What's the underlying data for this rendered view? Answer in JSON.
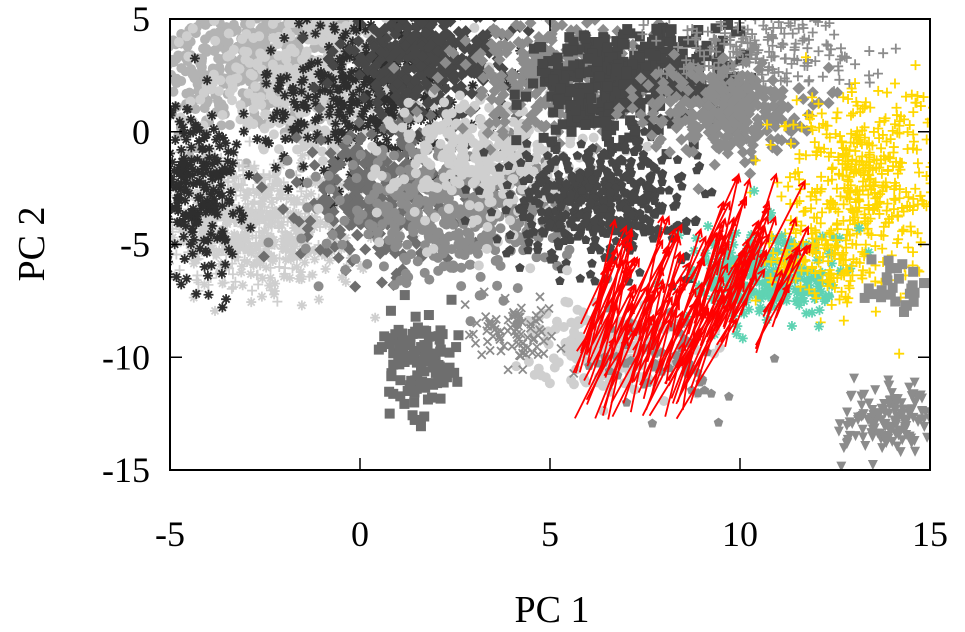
{
  "chart_data": {
    "type": "scatter",
    "xlabel": "PC 1",
    "ylabel": "PC 2",
    "xlim": [
      -5,
      15
    ],
    "ylim": [
      -15,
      5
    ],
    "xticks": [
      -5,
      0,
      5,
      10,
      15
    ],
    "yticks": [
      -15,
      -10,
      -5,
      0,
      5
    ],
    "xtick_labels": [
      "-5",
      "0",
      "5",
      "10",
      "15"
    ],
    "ytick_labels": [
      "-15",
      "-10",
      "-5",
      "0",
      "5"
    ],
    "grid": false,
    "legend": "none",
    "colors": {
      "light_gray": "#cfcfcf",
      "silver": "#b3b3b3",
      "mid_gray": "#8c8c8c",
      "dim_gray": "#6e6e6e",
      "dark_gray": "#474747",
      "charcoal": "#2e2e2e",
      "gold": "#ffd700",
      "turquoise": "#5fd3b3",
      "arrow_red": "#ff0000"
    },
    "clusters": [
      {
        "cx": -3.0,
        "cy": 3.0,
        "sx": 1.6,
        "sy": 1.6,
        "n": 520,
        "marker": "circle",
        "color": "#b3b3b3"
      },
      {
        "cx": -1.2,
        "cy": 2.2,
        "sx": 1.4,
        "sy": 1.8,
        "n": 420,
        "marker": "circle",
        "color": "#cfcfcf"
      },
      {
        "cx": -3.2,
        "cy": -3.8,
        "sx": 1.3,
        "sy": 1.4,
        "n": 420,
        "marker": "plus",
        "color": "#cfcfcf"
      },
      {
        "cx": -2.3,
        "cy": -4.5,
        "sx": 1.3,
        "sy": 1.3,
        "n": 300,
        "marker": "star",
        "color": "#cfcfcf"
      },
      {
        "cx": -4.4,
        "cy": -2.5,
        "sx": 0.6,
        "sy": 2.0,
        "n": 240,
        "marker": "star",
        "color": "#2e2e2e"
      },
      {
        "cx": 0.2,
        "cy": 1.5,
        "sx": 1.4,
        "sy": 1.8,
        "n": 360,
        "marker": "star",
        "color": "#2e2e2e"
      },
      {
        "cx": 0.5,
        "cy": -2.8,
        "sx": 1.0,
        "sy": 1.6,
        "n": 300,
        "marker": "diamond",
        "color": "#6e6e6e"
      },
      {
        "cx": 1.8,
        "cy": 3.2,
        "sx": 1.2,
        "sy": 1.2,
        "n": 360,
        "marker": "diamond",
        "color": "#474747"
      },
      {
        "cx": 2.6,
        "cy": -3.6,
        "sx": 1.5,
        "sy": 1.4,
        "n": 440,
        "marker": "circle",
        "color": "#8c8c8c"
      },
      {
        "cx": 3.6,
        "cy": -1.2,
        "sx": 1.3,
        "sy": 1.5,
        "n": 360,
        "marker": "circle",
        "color": "#cfcfcf"
      },
      {
        "cx": 5.2,
        "cy": 2.5,
        "sx": 1.4,
        "sy": 1.3,
        "n": 300,
        "marker": "diamond",
        "color": "#8c8c8c"
      },
      {
        "cx": 6.2,
        "cy": 2.0,
        "sx": 0.8,
        "sy": 1.2,
        "n": 220,
        "marker": "square",
        "color": "#474747"
      },
      {
        "cx": 6.3,
        "cy": -3.0,
        "sx": 1.2,
        "sy": 1.3,
        "n": 460,
        "marker": "pentagon",
        "color": "#474747"
      },
      {
        "cx": 8.0,
        "cy": 2.6,
        "sx": 1.0,
        "sy": 1.3,
        "n": 240,
        "marker": "square",
        "color": "#474747"
      },
      {
        "cx": 9.6,
        "cy": 1.0,
        "sx": 1.0,
        "sy": 1.0,
        "n": 320,
        "marker": "diamond",
        "color": "#8c8c8c"
      },
      {
        "cx": 10.4,
        "cy": 3.7,
        "sx": 1.4,
        "sy": 0.9,
        "n": 200,
        "marker": "plus",
        "color": "#8c8c8c"
      },
      {
        "cx": 13.2,
        "cy": -2.3,
        "sx": 1.0,
        "sy": 2.2,
        "n": 420,
        "marker": "plus",
        "color": "#ffd700"
      },
      {
        "cx": 10.8,
        "cy": -6.4,
        "sx": 1.0,
        "sy": 1.0,
        "n": 300,
        "marker": "star",
        "color": "#5fd3b3"
      },
      {
        "cx": 12.0,
        "cy": -5.8,
        "sx": 0.8,
        "sy": 0.9,
        "n": 120,
        "marker": "plus",
        "color": "#ffd700"
      },
      {
        "cx": 6.5,
        "cy": -9.5,
        "sx": 0.9,
        "sy": 1.0,
        "n": 180,
        "marker": "circle",
        "color": "#cfcfcf"
      },
      {
        "cx": 4.0,
        "cy": -9.0,
        "sx": 0.6,
        "sy": 0.6,
        "n": 80,
        "marker": "x",
        "color": "#8c8c8c"
      },
      {
        "cx": 1.6,
        "cy": -10.5,
        "sx": 0.5,
        "sy": 1.1,
        "n": 110,
        "marker": "square",
        "color": "#6e6e6e"
      },
      {
        "cx": 14.0,
        "cy": -12.8,
        "sx": 0.7,
        "sy": 0.8,
        "n": 150,
        "marker": "triangle-down",
        "color": "#8c8c8c"
      },
      {
        "cx": 8.0,
        "cy": -10.2,
        "sx": 0.9,
        "sy": 1.2,
        "n": 60,
        "marker": "pentagon",
        "color": "#8c8c8c"
      },
      {
        "cx": 14.2,
        "cy": -6.5,
        "sx": 0.4,
        "sy": 0.8,
        "n": 30,
        "marker": "square",
        "color": "#8c8c8c"
      }
    ],
    "arrow_groups": [
      {
        "x0": [
          5.6,
          8.8
        ],
        "y0": [
          -12.8,
          -8.5
        ],
        "dx": [
          0.4,
          1.6
        ],
        "dy": [
          3.2,
          5.5
        ],
        "n": 90,
        "color": "#ff0000"
      },
      {
        "x0": [
          8.6,
          11.0
        ],
        "y0": [
          -10.0,
          -5.5
        ],
        "dx": [
          0.5,
          1.3
        ],
        "dy": [
          2.5,
          4.6
        ],
        "n": 45,
        "color": "#ff0000"
      }
    ]
  }
}
